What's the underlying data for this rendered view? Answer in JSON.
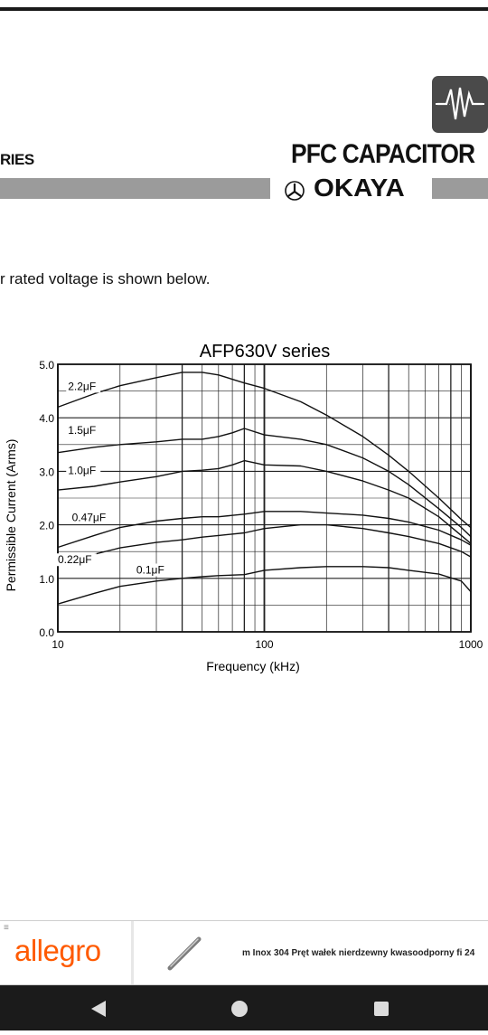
{
  "header": {
    "series_label": "RIES",
    "product_title": "PFC CAPACITOR",
    "brand": "OKAYA",
    "logo_icon": "waveform-logo-icon",
    "brand_icon": "okaya-mark-icon"
  },
  "intro": {
    "text": "r rated voltage is shown below."
  },
  "chart_data": {
    "type": "line",
    "title": "AFP630V series",
    "xlabel": "Frequency (kHz)",
    "ylabel": "Permissible Current (Arms)",
    "xscale": "log",
    "xlim": [
      10,
      1000
    ],
    "ylim": [
      0,
      5
    ],
    "xticks": [
      "10",
      "100",
      "1000"
    ],
    "yticks": [
      "0.0",
      "1.0",
      "2.0",
      "3.0",
      "4.0",
      "5.0"
    ],
    "grid": true,
    "series": [
      {
        "name": "2.2μF",
        "x": [
          10,
          15,
          20,
          30,
          40,
          50,
          60,
          80,
          100,
          150,
          200,
          300,
          400,
          500,
          700,
          900,
          1000
        ],
        "values": [
          4.2,
          4.45,
          4.6,
          4.75,
          4.85,
          4.85,
          4.8,
          4.65,
          4.55,
          4.3,
          4.05,
          3.65,
          3.3,
          3.0,
          2.5,
          2.1,
          1.95
        ]
      },
      {
        "name": "1.5μF",
        "x": [
          10,
          15,
          20,
          30,
          40,
          50,
          60,
          70,
          80,
          100,
          150,
          200,
          300,
          400,
          500,
          700,
          900,
          1000
        ],
        "values": [
          3.35,
          3.45,
          3.5,
          3.55,
          3.6,
          3.6,
          3.65,
          3.72,
          3.8,
          3.68,
          3.6,
          3.5,
          3.25,
          3.0,
          2.75,
          2.3,
          1.95,
          1.78
        ]
      },
      {
        "name": "1.0μF",
        "x": [
          10,
          15,
          20,
          30,
          40,
          50,
          60,
          70,
          80,
          100,
          150,
          200,
          300,
          400,
          500,
          700,
          900,
          1000
        ],
        "values": [
          2.65,
          2.72,
          2.8,
          2.9,
          3.0,
          3.02,
          3.05,
          3.12,
          3.2,
          3.12,
          3.1,
          3.0,
          2.82,
          2.65,
          2.5,
          2.15,
          1.8,
          1.65
        ]
      },
      {
        "name": "0.47μF",
        "x": [
          10,
          15,
          20,
          30,
          40,
          50,
          60,
          80,
          100,
          150,
          200,
          300,
          400,
          500,
          700,
          900,
          1000
        ],
        "values": [
          1.58,
          1.8,
          1.95,
          2.07,
          2.12,
          2.15,
          2.15,
          2.2,
          2.25,
          2.25,
          2.22,
          2.18,
          2.12,
          2.05,
          1.9,
          1.72,
          1.62
        ]
      },
      {
        "name": "0.22μF",
        "x": [
          10,
          15,
          20,
          30,
          40,
          50,
          60,
          80,
          100,
          150,
          200,
          300,
          400,
          500,
          700,
          900,
          1000
        ],
        "values": [
          1.25,
          1.45,
          1.57,
          1.67,
          1.72,
          1.77,
          1.8,
          1.85,
          1.93,
          2.0,
          2.0,
          1.93,
          1.85,
          1.78,
          1.65,
          1.5,
          1.4
        ]
      },
      {
        "name": "0.1μF",
        "x": [
          10,
          15,
          20,
          30,
          40,
          50,
          60,
          80,
          100,
          150,
          200,
          300,
          400,
          500,
          700,
          900,
          1000
        ],
        "values": [
          0.52,
          0.72,
          0.85,
          0.95,
          1.0,
          1.03,
          1.05,
          1.07,
          1.15,
          1.2,
          1.22,
          1.22,
          1.2,
          1.15,
          1.08,
          0.95,
          0.75
        ]
      }
    ]
  },
  "ad": {
    "menu_glyph": "≡",
    "logo": "allegro",
    "product_icon": "rod-product-icon",
    "text": "m Inox 304    Pręt wałek nierdzewny kwasoodporny fi 24"
  },
  "navbar": {
    "back_icon": "back-triangle-icon",
    "home_icon": "home-circle-icon",
    "recents_icon": "recents-square-icon"
  },
  "colors": {
    "header_bar": "#9b9b9b",
    "logo_box": "#4a4a4a",
    "ad_brand": "#ff5a00",
    "navbar": "#1b1b1b"
  }
}
